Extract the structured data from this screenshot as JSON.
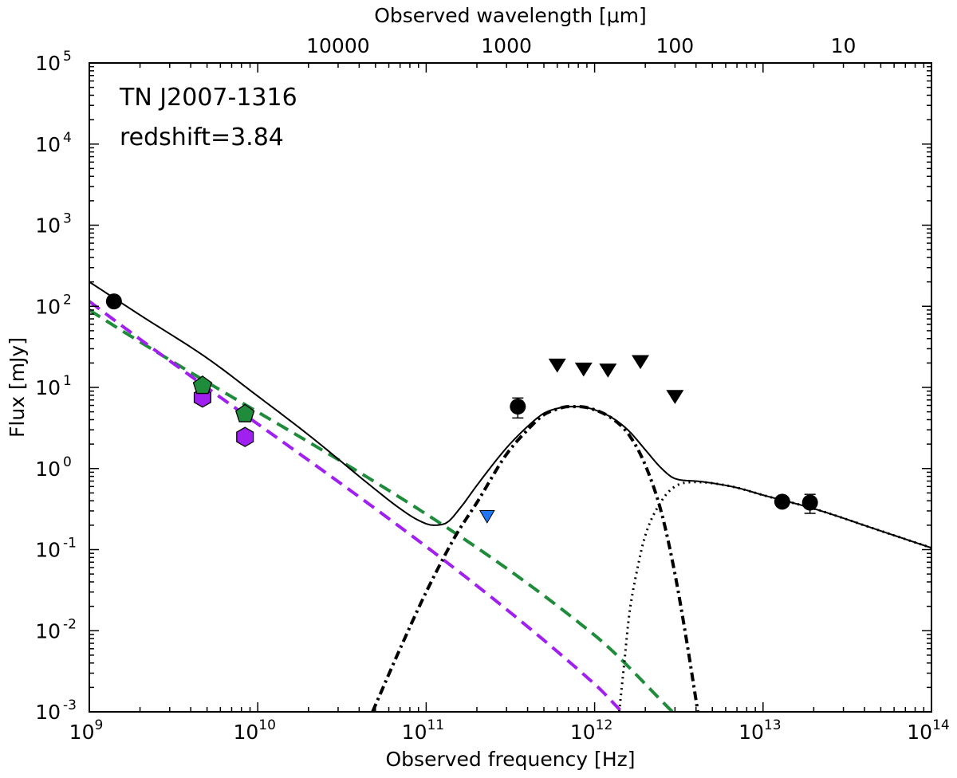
{
  "chart_data": {
    "type": "scatter",
    "xscale": "log",
    "yscale": "log",
    "xlim": [
      1000000000.0,
      100000000000000.0
    ],
    "ylim": [
      0.001,
      100000.0
    ],
    "xlabel": "Observed frequency [Hz]",
    "ylabel": "Flux [mJy]",
    "top_xlabel": "Observed wavelength [μm]",
    "top_ticks": [
      {
        "label": "10000",
        "wavelength_um": 10000
      },
      {
        "label": "1000",
        "wavelength_um": 1000
      },
      {
        "label": "100",
        "wavelength_um": 100
      },
      {
        "label": "10",
        "wavelength_um": 10
      }
    ],
    "x_ticks": [
      {
        "base": "10",
        "exp": "9",
        "value": 1000000000.0
      },
      {
        "base": "10",
        "exp": "10",
        "value": 10000000000.0
      },
      {
        "base": "10",
        "exp": "11",
        "value": 100000000000.0
      },
      {
        "base": "10",
        "exp": "12",
        "value": 1000000000000.0
      },
      {
        "base": "10",
        "exp": "13",
        "value": 10000000000000.0
      },
      {
        "base": "10",
        "exp": "14",
        "value": 100000000000000.0
      }
    ],
    "y_ticks": [
      {
        "base": "10",
        "exp": "-3",
        "value": 0.001
      },
      {
        "base": "10",
        "exp": "-2",
        "value": 0.01
      },
      {
        "base": "10",
        "exp": "-1",
        "value": 0.1
      },
      {
        "base": "10",
        "exp": "0",
        "value": 1,
        "label": "10⁰"
      },
      {
        "base": "10",
        "exp": "1",
        "value": 10
      },
      {
        "base": "10",
        "exp": "2",
        "value": 100
      },
      {
        "base": "10",
        "exp": "3",
        "value": 1000
      },
      {
        "base": "10",
        "exp": "4",
        "value": 10000
      },
      {
        "base": "10",
        "exp": "5",
        "value": 100000
      }
    ],
    "annotations": [
      "TN J2007-1316",
      "redshift=3.84"
    ],
    "observed_points": [
      {
        "x": 1400000000.0,
        "y": 115
      },
      {
        "x": 350000000000.0,
        "y": 5.8,
        "yerr_low": 1.6,
        "yerr_high": 1.6
      },
      {
        "x": 13000000000000.0,
        "y": 0.39
      },
      {
        "x": 19000000000000.0,
        "y": 0.38,
        "yerr_low": 0.1,
        "yerr_high": 0.1
      }
    ],
    "upper_limits": [
      {
        "x": 600000000000.0,
        "y": 19
      },
      {
        "x": 860000000000.0,
        "y": 17
      },
      {
        "x": 1200000000000.0,
        "y": 16.5
      },
      {
        "x": 1870000000000.0,
        "y": 21
      },
      {
        "x": 3000000000000.0,
        "y": 7.8
      }
    ],
    "blue_upper_limit": {
      "x": 230000000000.0,
      "y": 0.26,
      "color": "#1f77f4"
    },
    "green_points": [
      {
        "x": 4700000000.0,
        "y": 10.5
      },
      {
        "x": 8400000000.0,
        "y": 4.7
      }
    ],
    "purple_points": [
      {
        "x": 4700000000.0,
        "y": 7.5
      },
      {
        "x": 8400000000.0,
        "y": 2.45
      }
    ],
    "series": [
      {
        "name": "green synchrotron",
        "style": "dashed",
        "color": "#1e8c3a",
        "x": [
          1000000000.0,
          1000000000000.0,
          2900000000000.0
        ],
        "y": [
          90,
          0.0088,
          0.001
        ]
      },
      {
        "name": "purple synchrotron",
        "style": "dashed",
        "color": "#a020f0",
        "x": [
          1000000000.0,
          1000000000000.0,
          1450000000000.0
        ],
        "y": [
          115,
          0.0022,
          0.001
        ]
      },
      {
        "name": "dust",
        "style": "dashdot",
        "color": "#000000",
        "x": [
          48000000000.0,
          70000000000.0,
          100000000000.0,
          150000000000.0,
          200000000000.0,
          300000000000.0,
          400000000000.0,
          500000000000.0,
          600000000000.0,
          700000000000.0,
          800000000000.0,
          1000000000000.0,
          1300000000000.0,
          1600000000000.0,
          2000000000000.0,
          2500000000000.0,
          3000000000000.0,
          3500000000000.0,
          4100000000000.0
        ],
        "y": [
          0.001,
          0.006,
          0.03,
          0.15,
          0.38,
          1.5,
          3.0,
          4.6,
          5.4,
          5.8,
          5.8,
          5.3,
          4.0,
          2.6,
          1.1,
          0.28,
          0.05,
          0.008,
          0.001
        ]
      },
      {
        "name": "AGN torus",
        "style": "dotted",
        "color": "#000000",
        "x": [
          1400000000000.0,
          1500000000000.0,
          1600000000000.0,
          1800000000000.0,
          2000000000000.0,
          2500000000000.0,
          3000000000000.0,
          4000000000000.0,
          5000000000000.0,
          7000000000000.0,
          10000000000000.0,
          20000000000000.0,
          50000000000000.0,
          100000000000000.0
        ],
        "y": [
          0.001,
          0.004,
          0.015,
          0.06,
          0.15,
          0.4,
          0.6,
          0.68,
          0.66,
          0.58,
          0.47,
          0.32,
          0.17,
          0.105
        ]
      },
      {
        "name": "total",
        "style": "solid",
        "color": "#000000",
        "x": [
          1000000000.0,
          2000000000.0,
          5000000000.0,
          10000000000.0,
          20000000000.0,
          50000000000.0,
          70000000000.0,
          90000000000.0,
          110000000000.0,
          130000000000.0,
          160000000000.0,
          200000000000.0,
          300000000000.0,
          400000000000.0,
          500000000000.0,
          600000000000.0,
          700000000000.0,
          800000000000.0,
          1000000000000.0,
          1300000000000.0,
          1600000000000.0,
          2000000000000.0,
          2500000000000.0,
          3000000000000.0,
          4000000000000.0,
          5000000000000.0,
          7000000000000.0,
          10000000000000.0,
          20000000000000.0,
          50000000000000.0,
          100000000000000.0
        ],
        "y": [
          200,
          78,
          23,
          7.8,
          2.6,
          0.55,
          0.32,
          0.23,
          0.2,
          0.21,
          0.33,
          0.62,
          1.8,
          3.3,
          4.8,
          5.5,
          5.8,
          5.8,
          5.3,
          4.1,
          2.9,
          1.7,
          1.0,
          0.75,
          0.7,
          0.66,
          0.58,
          0.47,
          0.32,
          0.17,
          0.105
        ]
      }
    ]
  }
}
